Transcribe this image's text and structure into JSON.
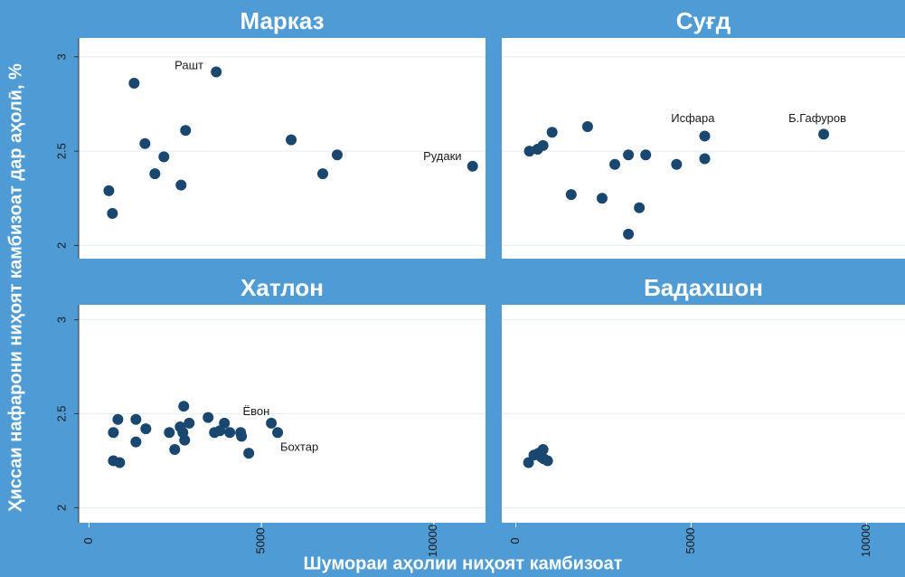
{
  "chart_data": [
    {
      "type": "scatter",
      "title": "Марказ",
      "color": "#1a476f",
      "grid": true,
      "x": [
        576,
        680,
        1309,
        1623,
        1911,
        2173,
        2670,
        2801,
        3691,
        5864,
        6780,
        7199,
        11126
      ],
      "y": [
        2.29,
        2.17,
        2.86,
        2.54,
        2.38,
        2.47,
        2.32,
        2.61,
        2.92,
        2.56,
        2.38,
        2.48,
        2.42
      ],
      "xlim": [
        -300,
        11500
      ],
      "ylim": [
        1.93,
        3.1
      ],
      "yticks": [
        2,
        2.5,
        3
      ],
      "annotations": [
        {
          "text": "Рашт",
          "x": 2900,
          "y": 2.95
        },
        {
          "text": "Рудаки",
          "x": 10250,
          "y": 2.47
        }
      ]
    },
    {
      "type": "scatter",
      "title": "Суғд",
      "color": "#1a476f",
      "grid": true,
      "x": [
        389,
        622,
        777,
        1036,
        1580,
        2047,
        2461,
        2824,
        3212,
        3212,
        3523,
        3705,
        4585,
        5389,
        5389,
        8782
      ],
      "y": [
        2.5,
        2.51,
        2.53,
        2.6,
        2.27,
        2.63,
        2.25,
        2.43,
        2.48,
        2.06,
        2.2,
        2.48,
        2.43,
        2.58,
        2.46,
        2.59
      ],
      "xlim": [
        -400,
        11100
      ],
      "ylim": [
        1.93,
        3.1
      ],
      "yticks": [
        2,
        2.5,
        3
      ],
      "annotations": [
        {
          "text": "Исфара",
          "x": 5050,
          "y": 2.67
        },
        {
          "text": "Б.Гафуров",
          "x": 8600,
          "y": 2.67
        }
      ]
    },
    {
      "type": "scatter",
      "title": "Хатлон",
      "color": "#1a476f",
      "grid": true,
      "x": [
        707,
        707,
        838,
        890,
        1361,
        1361,
        1649,
        2330,
        2487,
        2644,
        2723,
        2749,
        2775,
        2906,
        3455,
        3639,
        3796,
        3927,
        4084,
        4398,
        4424,
        4634,
        5288,
        5471
      ],
      "y": [
        2.4,
        2.25,
        2.47,
        2.24,
        2.47,
        2.35,
        2.42,
        2.4,
        2.31,
        2.43,
        2.4,
        2.54,
        2.36,
        2.45,
        2.48,
        2.4,
        2.41,
        2.45,
        2.4,
        2.4,
        2.38,
        2.29,
        2.45,
        2.4
      ],
      "xlim": [
        -300,
        11500
      ],
      "ylim": [
        1.92,
        3.08
      ],
      "xticks": [
        0,
        5000,
        10000
      ],
      "yticks": [
        2,
        2.5,
        3
      ],
      "annotations": [
        {
          "text": "Ёвон",
          "x": 4850,
          "y": 2.51
        },
        {
          "text": "Бохтар",
          "x": 6100,
          "y": 2.32
        }
      ]
    },
    {
      "type": "scatter",
      "title": "Бадахшон",
      "color": "#1a476f",
      "grid": true,
      "x": [
        363,
        518,
        648,
        777,
        725,
        803,
        907
      ],
      "y": [
        2.24,
        2.28,
        2.29,
        2.31,
        2.27,
        2.26,
        2.25
      ],
      "xlim": [
        -400,
        11100
      ],
      "ylim": [
        1.92,
        3.08
      ],
      "xticks": [
        0,
        5000,
        10000
      ],
      "yticks": [
        2,
        2.5,
        3
      ],
      "annotations": []
    }
  ],
  "xlabel": "Шумораи аҳолии ниҳоят камбизоат",
  "ylabel": "Ҳиссаи нафарони ниҳоят камбизоат дар аҳолӣ, %"
}
